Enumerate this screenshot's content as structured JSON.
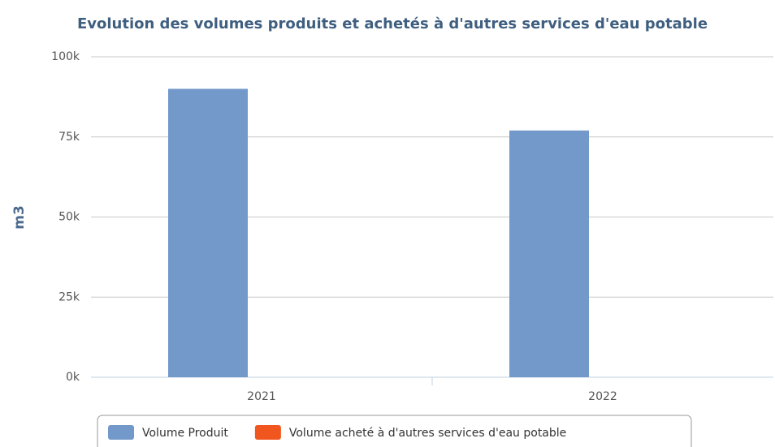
{
  "chart_data": {
    "type": "bar",
    "title": "Evolution des volumes produits et achetés à d'autres services d'eau potable",
    "y_label": "m3",
    "categories": [
      "2021",
      "2022"
    ],
    "series": [
      {
        "name": "Volume Produit",
        "color": "#7399cb",
        "values": [
          90000,
          77000
        ]
      },
      {
        "name": "Volume acheté à d'autres services d'eau potable",
        "color": "#f0561d",
        "values": [
          0,
          0
        ]
      }
    ],
    "ylim": [
      0,
      100000
    ],
    "yticks": [
      {
        "value": 0,
        "label": "0k"
      },
      {
        "value": 25000,
        "label": "25k"
      },
      {
        "value": 50000,
        "label": "50k"
      },
      {
        "value": 75000,
        "label": "75k"
      },
      {
        "value": 100000,
        "label": "100k"
      }
    ],
    "grid": true
  }
}
